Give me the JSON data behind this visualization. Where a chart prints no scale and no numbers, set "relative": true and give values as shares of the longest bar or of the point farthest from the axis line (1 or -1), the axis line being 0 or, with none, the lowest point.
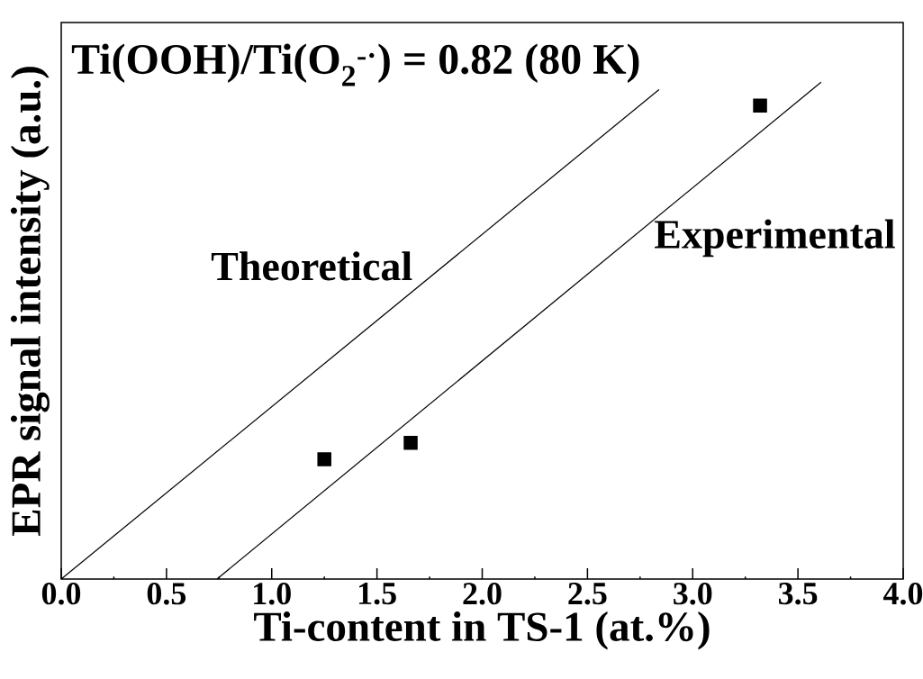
{
  "chart_data": {
    "type": "scatter",
    "relative": true,
    "xlabel": "Ti-content in TS-1 (at.%)",
    "ylabel": "EPR signal intensity (a.u.)",
    "xlim": [
      0,
      4
    ],
    "xticks": [
      {
        "value": 0,
        "label": "0.0"
      },
      {
        "value": 0.5,
        "label": "0.5"
      },
      {
        "value": 1,
        "label": "1.0"
      },
      {
        "value": 1.5,
        "label": "1.5"
      },
      {
        "value": 2,
        "label": "2.0"
      },
      {
        "value": 2.5,
        "label": "2.5"
      },
      {
        "value": 3,
        "label": "3.0"
      },
      {
        "value": 3.5,
        "label": "3.5"
      },
      {
        "value": 4,
        "label": "4.0"
      }
    ],
    "tick_labels": "x",
    "grid": false,
    "annotations": [
      "Ti(OOH)/Ti(O$_{2}$$^{-·}$) = 0.82 (80 K)"
    ],
    "series": [
      {
        "name": "Theoretical",
        "type": "line",
        "color": "#000000",
        "marker": "none",
        "x": [
          0,
          2.84
        ],
        "values": [
          0,
          0.985
        ]
      },
      {
        "name": "Experimental",
        "type": "line",
        "color": "#000000",
        "marker": "none",
        "x": [
          0.74,
          3.61
        ],
        "values": [
          0,
          1
        ]
      },
      {
        "color": "#000000",
        "marker": "square",
        "x": [
          1.25,
          1.66,
          3.32
        ],
        "values": [
          0.241,
          0.274,
          0.953
        ]
      }
    ]
  }
}
